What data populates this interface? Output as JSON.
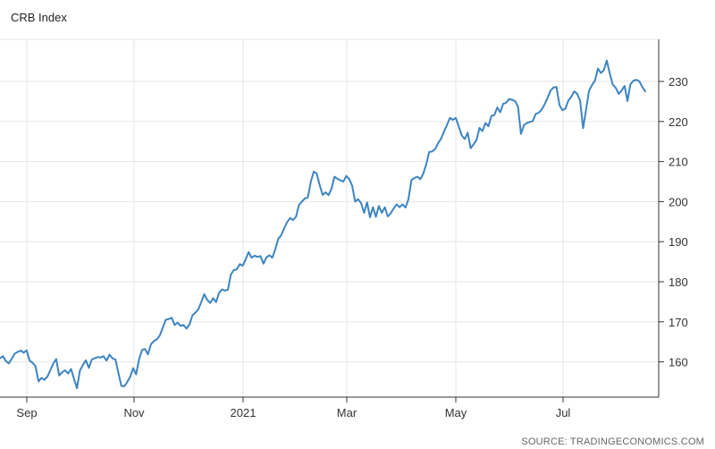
{
  "chart_data": {
    "type": "line",
    "title": "CRB Index",
    "xlabel": "",
    "ylabel": "",
    "x_tick_labels": [
      "Sep",
      "Nov",
      "2021",
      "Mar",
      "May",
      "Jul"
    ],
    "y_ticks": [
      160,
      170,
      180,
      190,
      200,
      210,
      220,
      230
    ],
    "ylim": [
      151.2,
      240.5
    ],
    "y_axis_side": "right",
    "grid": true,
    "legend": "none",
    "series": [
      {
        "values": [
          160.9,
          161.4,
          160.2,
          159.6,
          160.8,
          162.1,
          162.5,
          162.8,
          162.3,
          162.9,
          160.3,
          159.8,
          158.9,
          155.1,
          156.0,
          155.5,
          156.3,
          157.9,
          159.6,
          160.7,
          156.6,
          157.4,
          157.9,
          157.1,
          158.2,
          155.8,
          153.4,
          157.8,
          159.2,
          160.4,
          158.5,
          160.6,
          160.9,
          161.2,
          161.1,
          161.4,
          160.3,
          161.8,
          160.9,
          160.6,
          157.2,
          154.0,
          153.9,
          155.0,
          156.3,
          158.4,
          156.9,
          160.7,
          163.0,
          163.2,
          161.9,
          164.4,
          165.2,
          165.6,
          166.6,
          168.6,
          170.5,
          170.7,
          171.0,
          169.2,
          169.8,
          169.0,
          169.2,
          168.3,
          169.3,
          171.6,
          172.3,
          173.1,
          174.9,
          176.9,
          175.5,
          174.7,
          175.9,
          174.9,
          177.2,
          178.1,
          177.8,
          178.0,
          181.8,
          182.9,
          183.1,
          184.4,
          184.0,
          185.6,
          187.4,
          186.0,
          186.5,
          186.2,
          186.4,
          184.5,
          186.1,
          186.6,
          186.0,
          188.1,
          190.7,
          191.6,
          193.3,
          194.9,
          195.9,
          195.4,
          196.2,
          199.2,
          200.0,
          200.8,
          201.0,
          205.0,
          207.5,
          207.0,
          204.1,
          201.7,
          202.3,
          201.6,
          203.2,
          206.2,
          205.7,
          205.3,
          205.0,
          206.4,
          205.6,
          203.9,
          200.0,
          200.6,
          199.6,
          197.2,
          199.8,
          196.1,
          198.6,
          196.2,
          198.9,
          197.2,
          198.6,
          196.3,
          197.1,
          198.3,
          199.3,
          198.6,
          199.3,
          198.5,
          200.6,
          205.4,
          205.9,
          206.2,
          205.6,
          207.0,
          209.3,
          212.4,
          212.5,
          213.1,
          214.6,
          215.7,
          217.5,
          219.1,
          220.9,
          220.4,
          220.9,
          218.7,
          216.5,
          215.6,
          217.2,
          213.3,
          214.3,
          215.4,
          218.4,
          217.6,
          219.6,
          218.8,
          221.4,
          221.6,
          223.5,
          222.3,
          224.4,
          224.7,
          225.6,
          225.4,
          225.1,
          223.7,
          216.9,
          219.1,
          219.6,
          219.9,
          220.1,
          221.9,
          222.2,
          223.0,
          224.3,
          225.9,
          227.7,
          228.5,
          228.6,
          224.1,
          222.8,
          223.2,
          225.2,
          226.2,
          227.5,
          226.9,
          225.2,
          218.3,
          223.0,
          227.7,
          229.1,
          230.2,
          233.2,
          232.1,
          232.8,
          235.2,
          232.0,
          229.2,
          228.4,
          226.9,
          227.7,
          228.9,
          225.1,
          229.3,
          230.2,
          230.4,
          230.0,
          228.6,
          227.5
        ]
      }
    ]
  },
  "source_text": "SOURCE: TRADINGECONOMICS.COM",
  "colors": {
    "line": "#3d85c1",
    "grid": "#e6e6e6",
    "axis": "#333333"
  }
}
